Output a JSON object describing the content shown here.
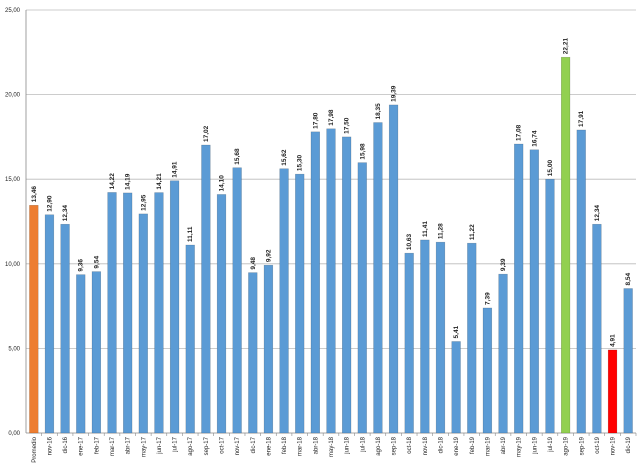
{
  "chart_data": {
    "type": "bar",
    "categories": [
      "Promedio",
      "nov-16",
      "dic-16",
      "ene-17",
      "feb-17",
      "mar-17",
      "abr-17",
      "may-17",
      "jun-17",
      "jul-17",
      "ago-17",
      "sep-17",
      "oct-17",
      "nov-17",
      "dic-17",
      "ene-18",
      "feb-18",
      "mar-18",
      "abr-18",
      "may-18",
      "jun-18",
      "jul-18",
      "ago-18",
      "sep-18",
      "oct-18",
      "nov-18",
      "dic-18",
      "ene-19",
      "feb-19",
      "mar-19",
      "abr-19",
      "may-19",
      "jun-19",
      "jul-19",
      "ago-19",
      "sep-19",
      "oct-19",
      "nov-19",
      "dic-19"
    ],
    "values": [
      13.46,
      12.9,
      12.34,
      9.36,
      9.54,
      14.22,
      14.19,
      12.95,
      14.21,
      14.91,
      11.11,
      17.02,
      14.1,
      15.68,
      9.48,
      9.92,
      15.62,
      15.3,
      17.8,
      17.98,
      17.5,
      15.98,
      18.35,
      19.39,
      10.63,
      11.41,
      11.28,
      5.41,
      11.22,
      7.39,
      9.39,
      17.08,
      16.74,
      15.0,
      22.21,
      17.91,
      12.34,
      4.91,
      8.54
    ],
    "value_labels": [
      "13,46",
      "12,90",
      "12,34",
      "9,36",
      "9,54",
      "14,22",
      "14,19",
      "12,95",
      "14,21",
      "14,91",
      "11,11",
      "17,02",
      "14,10",
      "15,68",
      "9,48",
      "9,92",
      "15,62",
      "15,30",
      "17,80",
      "17,98",
      "17,50",
      "15,98",
      "18,35",
      "19,39",
      "10,63",
      "11,41",
      "11,28",
      "5,41",
      "11,22",
      "7,39",
      "9,39",
      "17,08",
      "16,74",
      "15,00",
      "22,21",
      "17,91",
      "12,34",
      "4,91",
      "8,54"
    ],
    "colors": [
      "#ed7d31",
      "#5b9bd5",
      "#5b9bd5",
      "#5b9bd5",
      "#5b9bd5",
      "#5b9bd5",
      "#5b9bd5",
      "#5b9bd5",
      "#5b9bd5",
      "#5b9bd5",
      "#5b9bd5",
      "#5b9bd5",
      "#5b9bd5",
      "#5b9bd5",
      "#5b9bd5",
      "#5b9bd5",
      "#5b9bd5",
      "#5b9bd5",
      "#5b9bd5",
      "#5b9bd5",
      "#5b9bd5",
      "#5b9bd5",
      "#5b9bd5",
      "#5b9bd5",
      "#5b9bd5",
      "#5b9bd5",
      "#5b9bd5",
      "#5b9bd5",
      "#5b9bd5",
      "#5b9bd5",
      "#5b9bd5",
      "#5b9bd5",
      "#5b9bd5",
      "#5b9bd5",
      "#92d050",
      "#5b9bd5",
      "#5b9bd5",
      "#ff0000",
      "#5b9bd5"
    ],
    "ylim": [
      0,
      25
    ],
    "yticks": [
      {
        "value": 0,
        "label": "0,00"
      },
      {
        "value": 5,
        "label": "5,00"
      },
      {
        "value": 10,
        "label": "10,00"
      },
      {
        "value": 15,
        "label": "15,00"
      },
      {
        "value": 20,
        "label": "20,00"
      },
      {
        "value": 25,
        "label": "25,00"
      }
    ],
    "grid": true
  }
}
